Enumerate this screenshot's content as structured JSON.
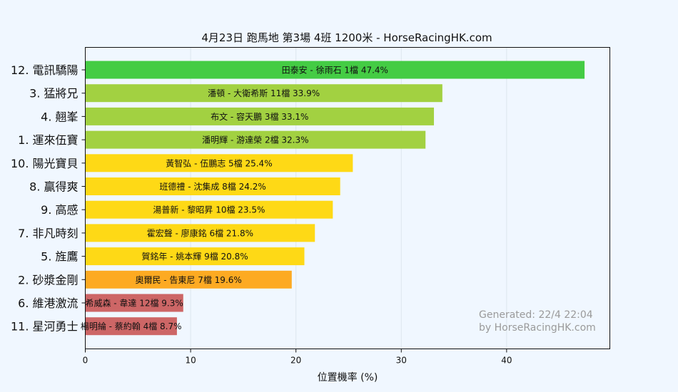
{
  "chart_data": {
    "type": "bar",
    "orientation": "horizontal",
    "title": "4月23日  跑馬地  第3場  4班  1200米 - HorseRacingHK.com",
    "xlabel": "位置機率 (%)",
    "ylabel": "",
    "xlim": [
      0,
      49.8
    ],
    "xticks": [
      0,
      10,
      20,
      30,
      40
    ],
    "grid": true,
    "bars": [
      {
        "horse": "12. 電訊驕陽",
        "label": "田泰安 - 徐雨石 1檔  47.4%",
        "value": 47.4,
        "color": "#44cc44"
      },
      {
        "horse": "3. 猛將兄",
        "label": "潘頓 - 大衛希斯 11檔  33.9%",
        "value": 33.9,
        "color": "#a2d141"
      },
      {
        "horse": "4. 翹峯",
        "label": "布文 - 容天鵬 3檔  33.1%",
        "value": 33.1,
        "color": "#a2d141"
      },
      {
        "horse": "1. 運來伍寶",
        "label": "潘明輝 - 游達榮 2檔  32.3%",
        "value": 32.3,
        "color": "#a2d141"
      },
      {
        "horse": "10. 陽光寶貝",
        "label": "黃智弘 - 伍鵬志 5檔  25.4%",
        "value": 25.4,
        "color": "#fed916"
      },
      {
        "horse": "8. 贏得爽",
        "label": "班德禮 - 沈集成 8檔  24.2%",
        "value": 24.2,
        "color": "#fed916"
      },
      {
        "horse": "9. 高感",
        "label": "湯普新 - 黎昭昇 10檔  23.5%",
        "value": 23.5,
        "color": "#fed916"
      },
      {
        "horse": "7. 非凡時刻",
        "label": "霍宏聲 - 廖康銘 6檔  21.8%",
        "value": 21.8,
        "color": "#fed916"
      },
      {
        "horse": "5. 旌鷹",
        "label": "賀銘年 - 姚本輝 9檔  20.8%",
        "value": 20.8,
        "color": "#fed916"
      },
      {
        "horse": "2. 砂漿金剛",
        "label": "奧爾民 - 告東尼 7檔  19.6%",
        "value": 19.6,
        "color": "#fdaa22"
      },
      {
        "horse": "6. 維港激流",
        "label": "希威森 - 韋達 12檔  9.3%",
        "value": 9.3,
        "color": "#cd6666"
      },
      {
        "horse": "11. 星河勇士",
        "label": "楊明綸 - 蔡約翰 4檔  8.7%",
        "value": 8.7,
        "color": "#cd6666"
      }
    ],
    "watermark": [
      "Generated: 22/4 22:04",
      "by HorseRacingHK.com"
    ]
  }
}
